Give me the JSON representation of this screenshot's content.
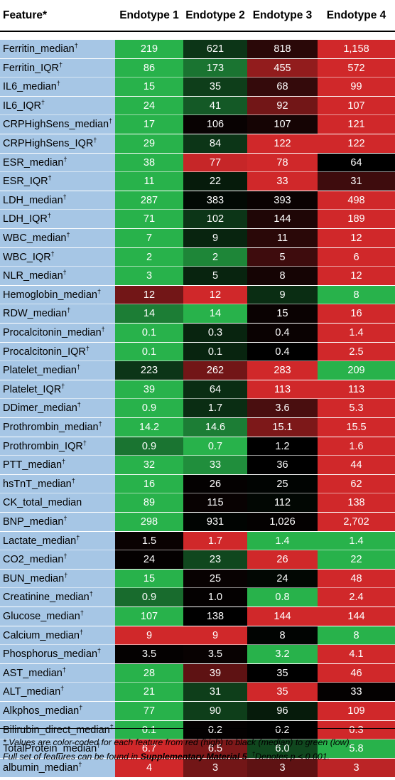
{
  "chart_data": {
    "type": "heatmap",
    "title": "",
    "header": {
      "feature": "Feature*",
      "columns": [
        "Endotype 1",
        "Endotype 2",
        "Endotype 3",
        "Endotype 4"
      ]
    },
    "color_scale": {
      "high": "#d0282a",
      "median": "#000000",
      "low": "#28b24b"
    },
    "rows": [
      {
        "feature": "Ferritin_median",
        "dagger": true,
        "values": [
          "219",
          "621",
          "818",
          "1,158"
        ],
        "shades": [
          -1.0,
          -0.3,
          0.2,
          1.0
        ]
      },
      {
        "feature": "Ferritin_IQR",
        "dagger": true,
        "values": [
          "86",
          "173",
          "455",
          "572"
        ],
        "shades": [
          -1.0,
          -0.65,
          0.7,
          1.0
        ]
      },
      {
        "feature": "IL6_median",
        "dagger": true,
        "values": [
          "15",
          "35",
          "68",
          "99"
        ],
        "shades": [
          -1.0,
          -0.35,
          0.25,
          1.0
        ]
      },
      {
        "feature": "IL6_IQR",
        "dagger": true,
        "values": [
          "24",
          "41",
          "92",
          "107"
        ],
        "shades": [
          -1.0,
          -0.5,
          0.55,
          1.0
        ]
      },
      {
        "feature": "CRPHighSens_median",
        "dagger": true,
        "values": [
          "17",
          "106",
          "107",
          "121"
        ],
        "shades": [
          -1.0,
          0.04,
          0.1,
          1.0
        ]
      },
      {
        "feature": "CRPHighSens_IQR",
        "dagger": true,
        "values": [
          "29",
          "84",
          "122",
          "122"
        ],
        "shades": [
          -1.0,
          -0.3,
          1.0,
          1.0
        ]
      },
      {
        "feature": "ESR_median",
        "dagger": true,
        "values": [
          "38",
          "77",
          "78",
          "64"
        ],
        "shades": [
          -1.0,
          0.95,
          1.0,
          0.0
        ]
      },
      {
        "feature": "ESR_IQR",
        "dagger": true,
        "values": [
          "11",
          "22",
          "33",
          "31"
        ],
        "shades": [
          -1.0,
          -0.15,
          1.0,
          0.3
        ]
      },
      {
        "feature": "LDH_median",
        "dagger": true,
        "values": [
          "287",
          "383",
          "393",
          "498"
        ],
        "shades": [
          -1.0,
          -0.05,
          0.05,
          1.0
        ]
      },
      {
        "feature": "LDH_IQR",
        "dagger": true,
        "values": [
          "71",
          "102",
          "144",
          "189"
        ],
        "shades": [
          -1.0,
          -0.3,
          0.15,
          1.0
        ]
      },
      {
        "feature": "WBC_median",
        "dagger": true,
        "values": [
          "7",
          "9",
          "11",
          "12"
        ],
        "shades": [
          -1.0,
          -0.2,
          0.2,
          1.0
        ]
      },
      {
        "feature": "WBC_IQR",
        "dagger": true,
        "values": [
          "2",
          "2",
          "5",
          "6"
        ],
        "shades": [
          -1.0,
          -0.75,
          0.3,
          1.0
        ]
      },
      {
        "feature": "NLR_median",
        "dagger": true,
        "values": [
          "3",
          "5",
          "8",
          "12"
        ],
        "shades": [
          -1.0,
          -0.2,
          0.1,
          1.0
        ]
      },
      {
        "feature": "Hemoglobin_median",
        "dagger": true,
        "values": [
          "12",
          "12",
          "9",
          "8"
        ],
        "shades": [
          0.55,
          1.0,
          -0.25,
          -1.0
        ]
      },
      {
        "feature": "RDW_median",
        "dagger": true,
        "values": [
          "14",
          "14",
          "15",
          "16"
        ],
        "shades": [
          -0.7,
          -1.0,
          0.05,
          1.0
        ]
      },
      {
        "feature": "Procalcitonin_median",
        "dagger": true,
        "values": [
          "0.1",
          "0.3",
          "0.4",
          "1.4"
        ],
        "shades": [
          -1.0,
          -0.2,
          0.05,
          1.0
        ]
      },
      {
        "feature": "Procalcitonin_IQR",
        "dagger": true,
        "values": [
          "0.1",
          "0.1",
          "0.4",
          "2.5"
        ],
        "shades": [
          -1.0,
          -0.2,
          0.0,
          1.0
        ]
      },
      {
        "feature": "Platelet_median",
        "dagger": true,
        "values": [
          "223",
          "262",
          "283",
          "209"
        ],
        "shades": [
          -0.3,
          0.55,
          1.0,
          -1.0
        ]
      },
      {
        "feature": "Platelet_IQR",
        "dagger": true,
        "values": [
          "39",
          "64",
          "113",
          "113"
        ],
        "shades": [
          -1.0,
          -0.25,
          1.0,
          1.0
        ]
      },
      {
        "feature": "DDimer_median",
        "dagger": true,
        "values": [
          "0.9",
          "1.7",
          "3.6",
          "5.3"
        ],
        "shades": [
          -1.0,
          -0.25,
          0.35,
          1.0
        ]
      },
      {
        "feature": "Prothrombin_median",
        "dagger": true,
        "values": [
          "14.2",
          "14.6",
          "15.1",
          "15.5"
        ],
        "shades": [
          -1.0,
          -0.7,
          0.6,
          1.0
        ]
      },
      {
        "feature": "Prothrombin_IQR",
        "dagger": true,
        "values": [
          "0.9",
          "0.7",
          "1.2",
          "1.6"
        ],
        "shades": [
          -0.65,
          -1.0,
          0.0,
          1.0
        ]
      },
      {
        "feature": "PTT_median",
        "dagger": true,
        "values": [
          "32",
          "33",
          "36",
          "44"
        ],
        "shades": [
          -1.0,
          -0.8,
          0.0,
          1.0
        ]
      },
      {
        "feature": "hsTnT_median",
        "dagger": true,
        "values": [
          "16",
          "26",
          "25",
          "62"
        ],
        "shades": [
          -1.0,
          0.02,
          -0.02,
          1.0
        ]
      },
      {
        "feature": "CK_total_median",
        "dagger": false,
        "values": [
          "89",
          "115",
          "112",
          "138"
        ],
        "shades": [
          -1.0,
          0.04,
          -0.04,
          1.0
        ]
      },
      {
        "feature": "BNP_median",
        "dagger": true,
        "values": [
          "298",
          "931",
          "1,026",
          "2,702"
        ],
        "shades": [
          -1.0,
          -0.02,
          0.02,
          1.0
        ]
      },
      {
        "feature": "Lactate_median",
        "dagger": true,
        "values": [
          "1.5",
          "1.7",
          "1.4",
          "1.4"
        ],
        "shades": [
          0.05,
          1.0,
          -1.0,
          -1.0
        ]
      },
      {
        "feature": "CO2_median",
        "dagger": true,
        "values": [
          "24",
          "23",
          "26",
          "22"
        ],
        "shades": [
          0.02,
          -0.4,
          1.0,
          -1.0
        ]
      },
      {
        "feature": "BUN_median",
        "dagger": true,
        "values": [
          "15",
          "25",
          "24",
          "48"
        ],
        "shades": [
          -1.0,
          0.04,
          -0.04,
          1.0
        ]
      },
      {
        "feature": "Creatinine_median",
        "dagger": true,
        "values": [
          "0.9",
          "1.0",
          "0.8",
          "2.4"
        ],
        "shades": [
          -0.6,
          0.02,
          -1.0,
          1.0
        ]
      },
      {
        "feature": "Glucose_median",
        "dagger": true,
        "values": [
          "107",
          "138",
          "144",
          "144"
        ],
        "shades": [
          -1.0,
          0.0,
          1.0,
          1.0
        ]
      },
      {
        "feature": "Calcium_median",
        "dagger": true,
        "values": [
          "9",
          "9",
          "8",
          "8"
        ],
        "shades": [
          1.0,
          1.0,
          -0.02,
          -1.0
        ]
      },
      {
        "feature": "Phosphorus_median",
        "dagger": true,
        "values": [
          "3.5",
          "3.5",
          "3.2",
          "4.1"
        ],
        "shades": [
          0.02,
          0.04,
          -1.0,
          1.0
        ]
      },
      {
        "feature": "AST_median",
        "dagger": true,
        "values": [
          "28",
          "39",
          "35",
          "46"
        ],
        "shades": [
          -1.0,
          0.45,
          0.0,
          1.0
        ]
      },
      {
        "feature": "ALT_median",
        "dagger": true,
        "values": [
          "21",
          "31",
          "35",
          "33"
        ],
        "shades": [
          -1.0,
          -0.35,
          1.0,
          0.02
        ]
      },
      {
        "feature": "Alkphos_median",
        "dagger": true,
        "values": [
          "77",
          "90",
          "96",
          "109"
        ],
        "shades": [
          -1.0,
          -0.35,
          -0.15,
          1.0
        ]
      },
      {
        "feature": "Bilirubin_direct_median",
        "dagger": true,
        "values": [
          "0.1",
          "0.2",
          "0.2",
          "0.3"
        ],
        "shades": [
          -1.0,
          0.02,
          0.0,
          1.0
        ]
      },
      {
        "feature": "TotalProtein_median",
        "dagger": true,
        "values": [
          "6.7",
          "6.5",
          "6.0",
          "5.8"
        ],
        "shades": [
          1.0,
          0.6,
          -0.4,
          -1.0
        ]
      },
      {
        "feature": "albumin_median",
        "dagger": true,
        "values": [
          "4",
          "3",
          "3",
          "3"
        ],
        "shades": [
          1.0,
          0.55,
          0.45,
          0.9
        ]
      }
    ]
  },
  "footnote": {
    "line1": "* Values are color-coded for each feature from red (high) to black (median) to green (low).",
    "line2_pre": "Full set of features can be found in ",
    "line2_bold": "Supplementary Material 5",
    "line2_mid": ". ",
    "dagger": "†",
    "line2_post": "Denotes p < 0.001."
  }
}
